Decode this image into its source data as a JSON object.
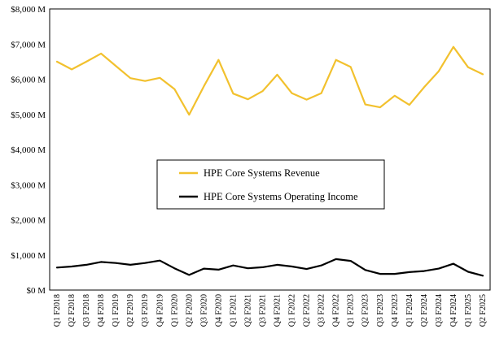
{
  "chart_data": {
    "type": "line",
    "title": "",
    "xlabel": "",
    "ylabel": "",
    "ylim": [
      0,
      8000
    ],
    "yticks": [
      0,
      1000,
      2000,
      3000,
      4000,
      5000,
      6000,
      7000,
      8000
    ],
    "ytick_labels": [
      "$0 M",
      "$1,000 M",
      "$2,000 M",
      "$3,000 M",
      "$4,000 M",
      "$5,000 M",
      "$6,000 M",
      "$7,000 M",
      "$8,000 M"
    ],
    "grid": false,
    "legend_position": "center-left inside plot",
    "categories": [
      "Q1 F2018",
      "Q2 F2018",
      "Q3 F2018",
      "Q4 F2018",
      "Q1 F2019",
      "Q2 F2019",
      "Q3 F2019",
      "Q4 F2019",
      "Q1 F2020",
      "Q2 F2020",
      "Q3 F2020",
      "Q4 F2020",
      "Q1 F2021",
      "Q2 F2021",
      "Q3 F2021",
      "Q4 F2021",
      "Q1 F2022",
      "Q2 F2022",
      "Q3 F2022",
      "Q4 F2022",
      "Q1 F2023",
      "Q2 F2023",
      "Q3 F2023",
      "Q4 F2023",
      "Q1 F2024",
      "Q2 F2024",
      "Q3 F2024",
      "Q4 F2024",
      "Q1 F2025",
      "Q2 F2025"
    ],
    "series": [
      {
        "name": "HPE Core Systems Revenue",
        "color": "#f2c12e",
        "values": [
          6500,
          6280,
          6500,
          6730,
          6380,
          6030,
          5950,
          6040,
          5720,
          4990,
          5800,
          6550,
          5590,
          5430,
          5660,
          6130,
          5600,
          5420,
          5600,
          6550,
          6350,
          5280,
          5200,
          5530,
          5270,
          5770,
          6230,
          6920,
          6340,
          6140
        ]
      },
      {
        "name": "HPE Core Systems Operating Income",
        "color": "#000000",
        "values": [
          640,
          670,
          720,
          800,
          770,
          720,
          770,
          840,
          620,
          430,
          610,
          580,
          700,
          620,
          650,
          720,
          670,
          600,
          700,
          880,
          830,
          570,
          460,
          460,
          510,
          540,
          610,
          750,
          520,
          410
        ]
      }
    ]
  }
}
